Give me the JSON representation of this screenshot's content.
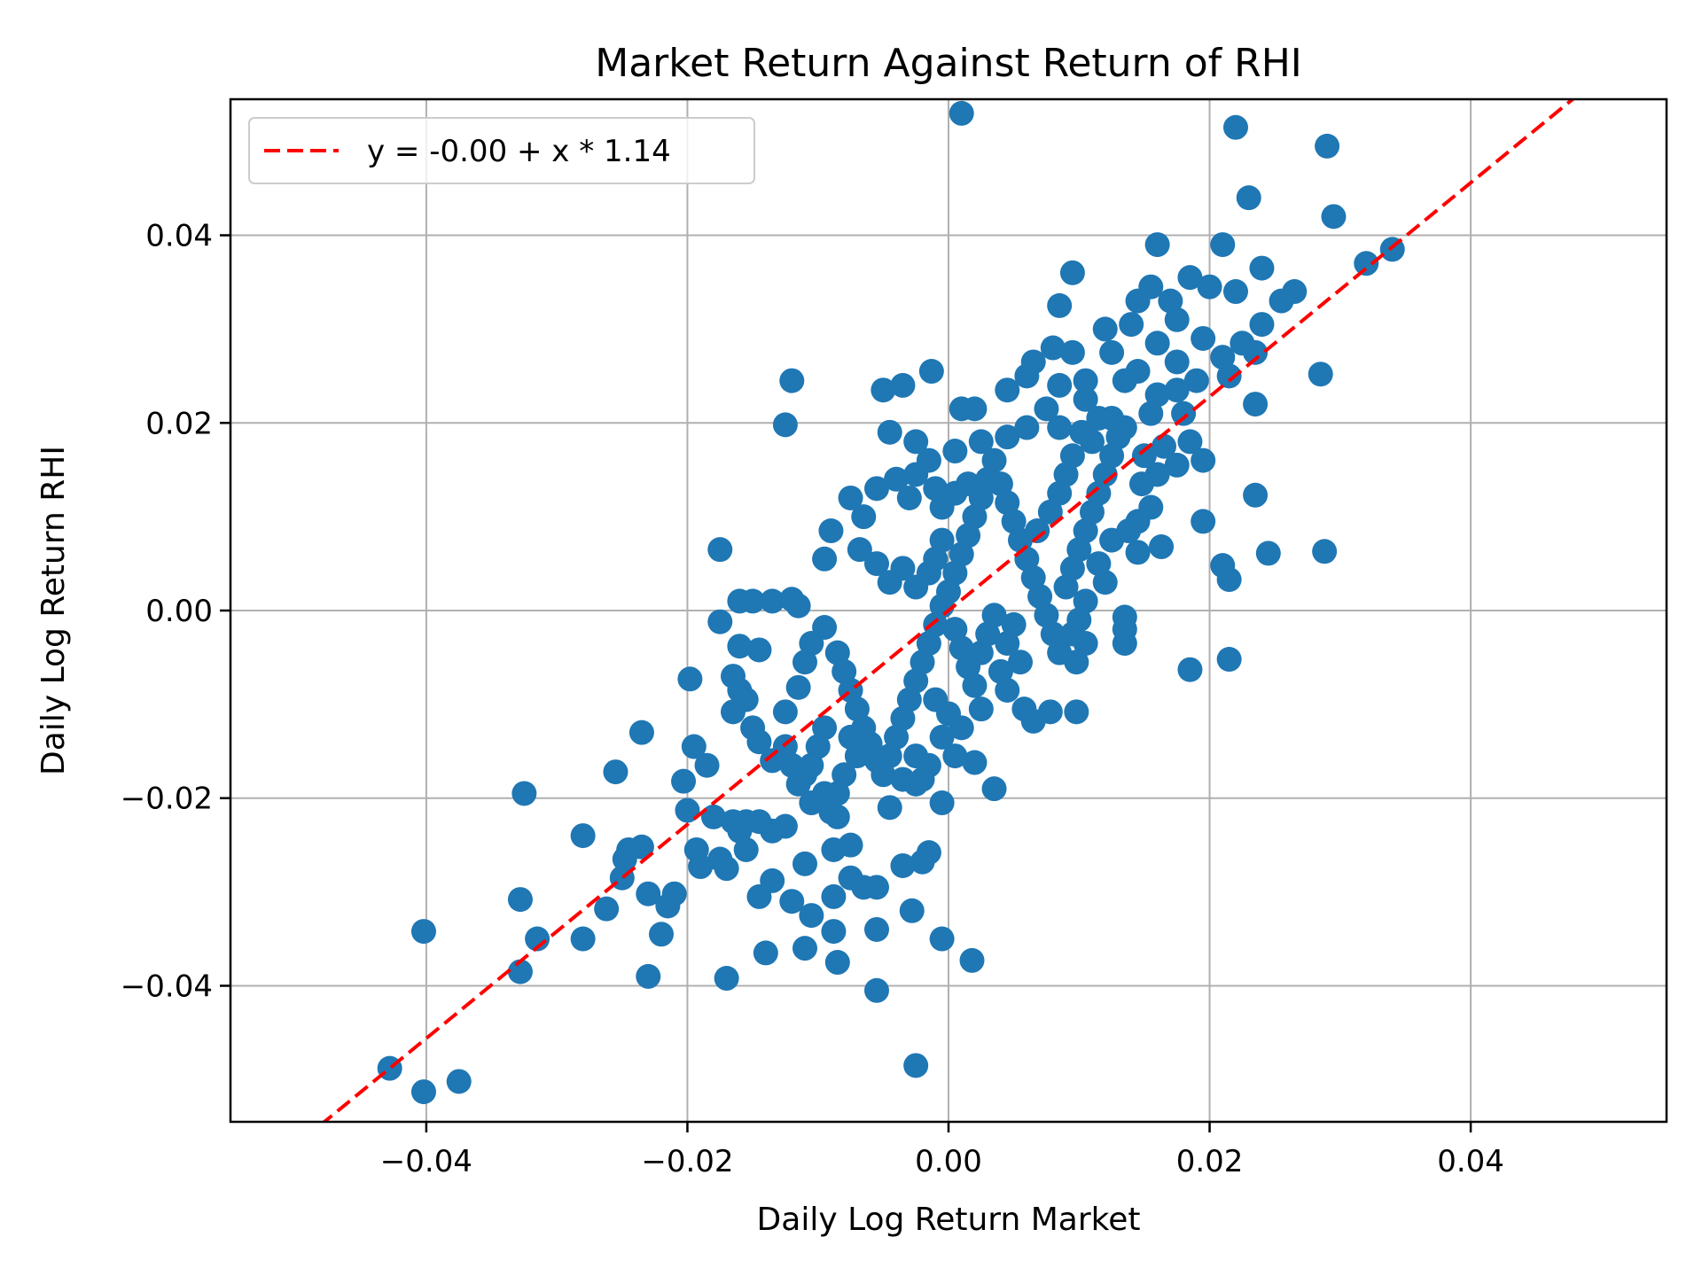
{
  "chart_data": {
    "type": "scatter",
    "title": "Market Return Against Return of RHI",
    "xlabel": "Daily Log Return Market",
    "ylabel": "Daily Log Return RHI",
    "xlim": [
      -0.055,
      0.055
    ],
    "ylim": [
      -0.0545,
      0.0545
    ],
    "xticks": [
      -0.04,
      -0.02,
      0.0,
      0.02,
      0.04
    ],
    "xtick_labels": [
      "−0.04",
      "−0.02",
      "0.00",
      "0.02",
      "0.04"
    ],
    "yticks": [
      -0.04,
      -0.02,
      0.0,
      0.02,
      0.04
    ],
    "ytick_labels": [
      "−0.04",
      "−0.02",
      "0.00",
      "0.02",
      "0.04"
    ],
    "grid": true,
    "legend_position": "upper left",
    "legend": [
      "y = -0.00 + x * 1.14"
    ],
    "regression": {
      "intercept": -0.0,
      "slope": 1.14,
      "color": "#ff0000",
      "style": "dashed",
      "label": "y = -0.00 + x * 1.14"
    },
    "marker_color": "#1f77b4",
    "points": [
      [
        0.001,
        0.053
      ],
      [
        0.022,
        0.0515
      ],
      [
        0.029,
        0.0495
      ],
      [
        0.023,
        0.044
      ],
      [
        0.0295,
        0.042
      ],
      [
        0.034,
        0.0385
      ],
      [
        0.032,
        0.037
      ],
      [
        0.016,
        0.039
      ],
      [
        0.021,
        0.039
      ],
      [
        0.0095,
        0.036
      ],
      [
        0.024,
        0.0365
      ],
      [
        0.0155,
        0.0345
      ],
      [
        0.0185,
        0.0355
      ],
      [
        0.02,
        0.0345
      ],
      [
        0.022,
        0.034
      ],
      [
        0.0265,
        0.034
      ],
      [
        0.0255,
        0.033
      ],
      [
        0.0085,
        0.0325
      ],
      [
        0.017,
        0.033
      ],
      [
        0.0145,
        0.033
      ],
      [
        0.0175,
        0.031
      ],
      [
        0.024,
        0.0305
      ],
      [
        0.012,
        0.03
      ],
      [
        0.014,
        0.0305
      ],
      [
        0.0095,
        0.0275
      ],
      [
        0.0195,
        0.029
      ],
      [
        0.0225,
        0.0285
      ],
      [
        0.0235,
        0.0275
      ],
      [
        0.016,
        0.0285
      ],
      [
        0.0125,
        0.0275
      ],
      [
        0.008,
        0.028
      ],
      [
        0.021,
        0.027
      ],
      [
        0.0285,
        0.0252
      ],
      [
        0.0175,
        0.0265
      ],
      [
        0.0065,
        0.0265
      ],
      [
        0.0145,
        0.0255
      ],
      [
        0.0215,
        0.025
      ],
      [
        0.019,
        0.0245
      ],
      [
        0.006,
        0.025
      ],
      [
        0.0105,
        0.0245
      ],
      [
        0.0135,
        0.0245
      ],
      [
        0.016,
        0.023
      ],
      [
        0.0175,
        0.0235
      ],
      [
        0.0235,
        0.022
      ],
      [
        0.0085,
        0.024
      ],
      [
        0.0045,
        0.0235
      ],
      [
        0.0155,
        0.021
      ],
      [
        0.0125,
        0.0205
      ],
      [
        0.018,
        0.021
      ],
      [
        0.0105,
        0.0225
      ],
      [
        0.0075,
        0.0215
      ],
      [
        0.0135,
        0.0195
      ],
      [
        0.002,
        0.0215
      ],
      [
        0.001,
        0.0215
      ],
      [
        0.0115,
        0.0205
      ],
      [
        -0.0013,
        0.0255
      ],
      [
        -0.0035,
        0.024
      ],
      [
        -0.005,
        0.0235
      ],
      [
        -0.012,
        0.0245
      ],
      [
        -0.0125,
        0.0198
      ],
      [
        -0.0045,
        0.019
      ],
      [
        -0.0025,
        0.018
      ],
      [
        0.0005,
        0.017
      ],
      [
        0.0025,
        0.018
      ],
      [
        0.0045,
        0.0185
      ],
      [
        0.006,
        0.0195
      ],
      [
        0.0085,
        0.0195
      ],
      [
        0.0185,
        0.018
      ],
      [
        0.0165,
        0.0175
      ],
      [
        0.015,
        0.0165
      ],
      [
        0.0195,
        0.016
      ],
      [
        0.0235,
        0.0123
      ],
      [
        0.0195,
        0.0095
      ],
      [
        0.021,
        0.0048
      ],
      [
        0.0215,
        0.0033
      ],
      [
        0.0245,
        0.0061
      ],
      [
        0.0288,
        0.0063
      ],
      [
        0.0215,
        -0.0052
      ],
      [
        0.0185,
        -0.0063
      ],
      [
        0.0135,
        -0.0035
      ],
      [
        0.0135,
        -0.002
      ],
      [
        0.0135,
        -0.0007
      ],
      [
        0.0105,
        -0.0035
      ],
      [
        0.0098,
        -0.0055
      ],
      [
        0.0098,
        -0.0108
      ],
      [
        0.0078,
        -0.0108
      ],
      [
        0.0065,
        -0.0118
      ],
      [
        0.0058,
        -0.0105
      ],
      [
        0.0045,
        -0.0085
      ],
      [
        0.0025,
        -0.0105
      ],
      [
        0.0035,
        -0.019
      ],
      [
        0.002,
        -0.0162
      ],
      [
        0.0018,
        -0.0373
      ],
      [
        -0.0005,
        -0.0205
      ],
      [
        -0.002,
        -0.018
      ],
      [
        -0.0015,
        -0.0258
      ],
      [
        -0.002,
        -0.0268
      ],
      [
        -0.0025,
        -0.0185
      ],
      [
        -0.0028,
        -0.032
      ],
      [
        -0.0035,
        -0.0272
      ],
      [
        -0.0045,
        -0.021
      ],
      [
        -0.0055,
        -0.0295
      ],
      [
        -0.0065,
        -0.0295
      ],
      [
        -0.0055,
        -0.034
      ],
      [
        -0.0055,
        -0.0405
      ],
      [
        -0.0025,
        -0.0485
      ],
      [
        -0.0005,
        -0.035
      ],
      [
        -0.0075,
        -0.0285
      ],
      [
        -0.0075,
        -0.025
      ],
      [
        -0.0085,
        -0.022
      ],
      [
        -0.0088,
        -0.0305
      ],
      [
        -0.0088,
        -0.0255
      ],
      [
        -0.0085,
        -0.0375
      ],
      [
        -0.0088,
        -0.0342
      ],
      [
        -0.0105,
        -0.0325
      ],
      [
        -0.011,
        -0.036
      ],
      [
        -0.011,
        -0.027
      ],
      [
        -0.012,
        -0.031
      ],
      [
        -0.0125,
        -0.023
      ],
      [
        -0.0135,
        -0.0235
      ],
      [
        -0.0135,
        -0.0288
      ],
      [
        -0.0145,
        -0.0305
      ],
      [
        -0.014,
        -0.0365
      ],
      [
        -0.0145,
        -0.0225
      ],
      [
        -0.0155,
        -0.0225
      ],
      [
        -0.0155,
        -0.0255
      ],
      [
        -0.016,
        -0.0235
      ],
      [
        -0.0165,
        -0.0225
      ],
      [
        -0.017,
        -0.0275
      ],
      [
        -0.017,
        -0.0392
      ],
      [
        -0.0175,
        -0.0265
      ],
      [
        -0.018,
        -0.022
      ],
      [
        -0.0185,
        -0.0165
      ],
      [
        -0.0193,
        -0.0255
      ],
      [
        -0.019,
        -0.0273
      ],
      [
        -0.0195,
        -0.0145
      ],
      [
        -0.02,
        -0.0213
      ],
      [
        -0.0203,
        -0.0182
      ],
      [
        -0.0198,
        -0.0073
      ],
      [
        -0.021,
        -0.0302
      ],
      [
        -0.0215,
        -0.0315
      ],
      [
        -0.022,
        -0.0345
      ],
      [
        -0.023,
        -0.0302
      ],
      [
        -0.023,
        -0.039
      ],
      [
        -0.0235,
        -0.0252
      ],
      [
        -0.0235,
        -0.013
      ],
      [
        -0.0245,
        -0.0255
      ],
      [
        -0.0248,
        -0.0265
      ],
      [
        -0.025,
        -0.0285
      ],
      [
        -0.0255,
        -0.0172
      ],
      [
        -0.0262,
        -0.0318
      ],
      [
        -0.028,
        -0.024
      ],
      [
        -0.028,
        -0.035
      ],
      [
        -0.0315,
        -0.035
      ],
      [
        -0.0325,
        -0.0195
      ],
      [
        -0.0328,
        -0.0308
      ],
      [
        -0.0328,
        -0.0385
      ],
      [
        -0.0402,
        -0.0342
      ],
      [
        -0.0402,
        -0.0513
      ],
      [
        -0.0375,
        -0.0502
      ],
      [
        -0.0428,
        -0.0488
      ],
      [
        -0.0175,
        -0.0012
      ],
      [
        -0.016,
        0.001
      ],
      [
        -0.015,
        0.001
      ],
      [
        -0.0135,
        0.001
      ],
      [
        -0.012,
        0.0012
      ],
      [
        -0.0115,
        0.0005
      ],
      [
        -0.0175,
        0.0065
      ],
      [
        -0.016,
        -0.0038
      ],
      [
        -0.0145,
        -0.0042
      ],
      [
        -0.0165,
        -0.007
      ],
      [
        -0.016,
        -0.0085
      ],
      [
        -0.0155,
        -0.0095
      ],
      [
        -0.0165,
        -0.0108
      ],
      [
        -0.015,
        -0.0125
      ],
      [
        -0.0145,
        -0.014
      ],
      [
        -0.0135,
        -0.016
      ],
      [
        -0.0125,
        -0.0145
      ],
      [
        -0.012,
        -0.0165
      ],
      [
        -0.0115,
        -0.0185
      ],
      [
        -0.011,
        -0.0175
      ],
      [
        -0.0105,
        -0.0205
      ],
      [
        -0.0095,
        -0.0195
      ],
      [
        -0.009,
        -0.0215
      ],
      [
        -0.0125,
        -0.0108
      ],
      [
        -0.0115,
        -0.0082
      ],
      [
        -0.011,
        -0.0055
      ],
      [
        -0.0105,
        -0.0035
      ],
      [
        -0.0095,
        -0.0018
      ],
      [
        -0.0085,
        -0.0045
      ],
      [
        -0.008,
        -0.0065
      ],
      [
        -0.0075,
        -0.0085
      ],
      [
        -0.007,
        -0.0105
      ],
      [
        -0.0065,
        -0.0125
      ],
      [
        -0.006,
        -0.0142
      ],
      [
        -0.0055,
        -0.016
      ],
      [
        -0.005,
        -0.0175
      ],
      [
        -0.0045,
        -0.0155
      ],
      [
        -0.004,
        -0.0135
      ],
      [
        -0.0035,
        -0.0115
      ],
      [
        -0.003,
        -0.0095
      ],
      [
        -0.0025,
        -0.0075
      ],
      [
        -0.002,
        -0.0055
      ],
      [
        -0.0015,
        -0.0035
      ],
      [
        -0.001,
        -0.0015
      ],
      [
        -0.0005,
        0.0005
      ],
      [
        0.0,
        0.002
      ],
      [
        0.0005,
        0.004
      ],
      [
        0.001,
        0.006
      ],
      [
        0.0015,
        0.008
      ],
      [
        0.002,
        0.01
      ],
      [
        0.0025,
        0.012
      ],
      [
        0.003,
        0.014
      ],
      [
        0.0035,
        0.016
      ],
      [
        0.004,
        0.0135
      ],
      [
        0.0045,
        0.0115
      ],
      [
        0.005,
        0.0095
      ],
      [
        0.0055,
        0.0075
      ],
      [
        0.006,
        0.0055
      ],
      [
        0.0065,
        0.0035
      ],
      [
        0.007,
        0.0015
      ],
      [
        0.0075,
        -0.0005
      ],
      [
        0.008,
        -0.0025
      ],
      [
        0.0085,
        -0.0045
      ],
      [
        0.009,
        0.0025
      ],
      [
        0.0095,
        0.0045
      ],
      [
        0.01,
        0.0065
      ],
      [
        0.0105,
        0.0085
      ],
      [
        0.011,
        0.0105
      ],
      [
        0.0115,
        0.0125
      ],
      [
        0.012,
        0.0145
      ],
      [
        0.0125,
        0.0165
      ],
      [
        0.013,
        0.0185
      ],
      [
        0.0115,
        0.005
      ],
      [
        0.012,
        0.003
      ],
      [
        0.0105,
        0.001
      ],
      [
        0.01,
        -0.001
      ],
      [
        0.0095,
        -0.0025
      ],
      [
        -0.009,
        0.0085
      ],
      [
        -0.0095,
        0.0055
      ],
      [
        -0.0075,
        0.012
      ],
      [
        -0.0065,
        0.01
      ],
      [
        -0.0055,
        0.013
      ],
      [
        -0.004,
        0.014
      ],
      [
        -0.003,
        0.012
      ],
      [
        -0.0025,
        0.0145
      ],
      [
        -0.0015,
        0.016
      ],
      [
        -0.001,
        0.013
      ],
      [
        -0.0005,
        0.011
      ],
      [
        0.0005,
        0.0125
      ],
      [
        0.0015,
        0.0135
      ],
      [
        -0.0068,
        0.0065
      ],
      [
        -0.0055,
        0.005
      ],
      [
        -0.0045,
        0.003
      ],
      [
        -0.0035,
        0.0045
      ],
      [
        -0.0025,
        0.0025
      ],
      [
        -0.0015,
        0.004
      ],
      [
        -0.001,
        0.0055
      ],
      [
        -0.0005,
        0.0075
      ],
      [
        0.0005,
        -0.002
      ],
      [
        0.001,
        -0.004
      ],
      [
        0.0015,
        -0.006
      ],
      [
        0.002,
        -0.008
      ],
      [
        0.0025,
        -0.0045
      ],
      [
        0.003,
        -0.0025
      ],
      [
        0.0035,
        -0.0005
      ],
      [
        0.004,
        -0.0065
      ],
      [
        0.0045,
        -0.0035
      ],
      [
        0.005,
        -0.0015
      ],
      [
        0.0055,
        -0.0055
      ],
      [
        0.0,
        -0.011
      ],
      [
        -0.0005,
        -0.0135
      ],
      [
        -0.001,
        -0.0095
      ],
      [
        0.0005,
        -0.0155
      ],
      [
        0.001,
        -0.0125
      ],
      [
        -0.0015,
        -0.0165
      ],
      [
        -0.0025,
        -0.0155
      ],
      [
        -0.0035,
        -0.018
      ],
      [
        -0.007,
        -0.0155
      ],
      [
        -0.0075,
        -0.0135
      ],
      [
        -0.008,
        -0.0175
      ],
      [
        -0.0085,
        -0.0195
      ],
      [
        -0.0095,
        -0.0125
      ],
      [
        -0.01,
        -0.0145
      ],
      [
        -0.0105,
        -0.0165
      ],
      [
        0.0068,
        0.0085
      ],
      [
        0.0078,
        0.0105
      ],
      [
        0.0085,
        0.0125
      ],
      [
        0.009,
        0.0145
      ],
      [
        0.0095,
        0.0165
      ],
      [
        0.0102,
        0.019
      ],
      [
        0.011,
        0.018
      ],
      [
        0.0145,
        0.0095
      ],
      [
        0.0155,
        0.011
      ],
      [
        0.0163,
        0.0068
      ],
      [
        0.0145,
        0.0062
      ],
      [
        0.0125,
        0.0075
      ],
      [
        0.0138,
        0.0085
      ],
      [
        0.0175,
        0.0155
      ],
      [
        0.016,
        0.0145
      ],
      [
        0.0148,
        0.0135
      ]
    ]
  }
}
